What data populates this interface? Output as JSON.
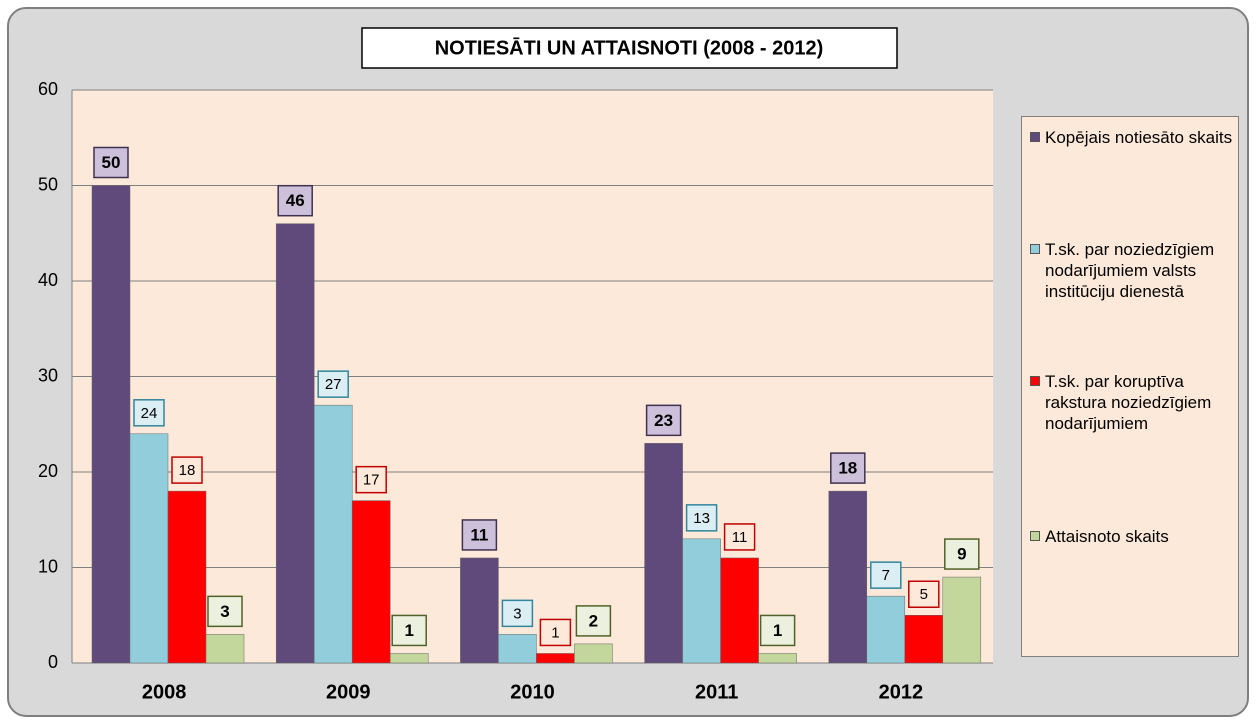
{
  "chart_data": {
    "type": "bar",
    "title": "NOTIESĀTI UN ATTAISNOTI (2008 - 2012)",
    "categories": [
      "2008",
      "2009",
      "2010",
      "2011",
      "2012"
    ],
    "series": [
      {
        "name": "Kopējais notiesāto skaits",
        "color": "#604a7b",
        "values": [
          50,
          46,
          11,
          23,
          18
        ]
      },
      {
        "name": "T.sk. par noziedzīgiem nodarījumiem valsts institūciju dienestā",
        "color": "#92cddc",
        "values": [
          24,
          27,
          3,
          13,
          7
        ]
      },
      {
        "name": "T.sk. par koruptīva rakstura noziedzīgiem nodarījumiem",
        "color": "#ff0000",
        "values": [
          18,
          17,
          1,
          11,
          5
        ]
      },
      {
        "name": "Attaisnoto skaits",
        "color": "#c3d69b",
        "values": [
          3,
          1,
          2,
          1,
          9
        ]
      }
    ],
    "ylim": [
      0,
      60
    ],
    "yticks": [
      0,
      10,
      20,
      30,
      40,
      50,
      60
    ],
    "grid": true,
    "legend": "right"
  }
}
